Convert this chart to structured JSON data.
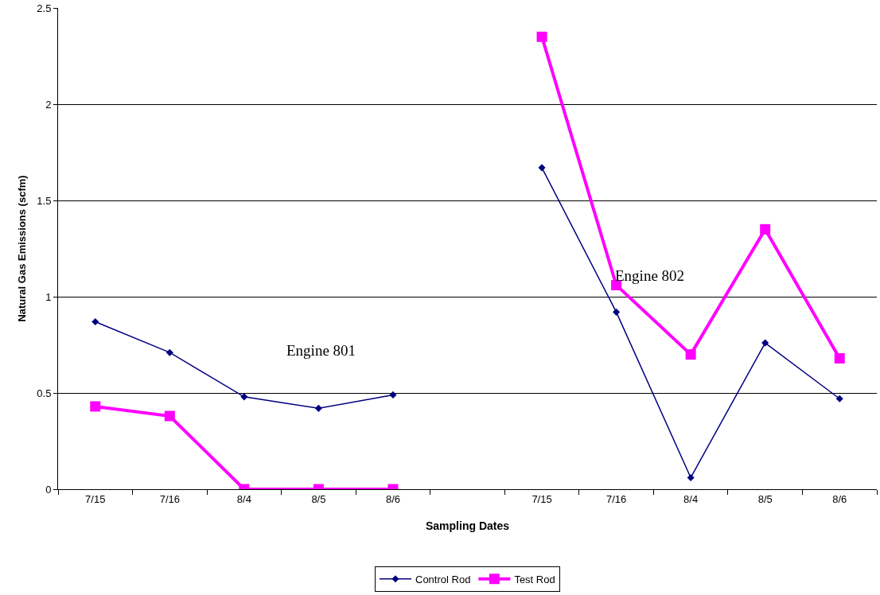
{
  "chart_data": {
    "type": "line",
    "xlabel": "Sampling Dates",
    "ylabel": "Natural Gas Emissions (scfm)",
    "categories": [
      "7/15",
      "7/16",
      "8/4",
      "8/5",
      "8/6",
      null,
      "7/15",
      "7/16",
      "8/4",
      "8/5",
      "8/6"
    ],
    "series": [
      {
        "name": "Control Rod",
        "color": "#000080",
        "marker": "diamond",
        "values": [
          0.87,
          0.71,
          0.48,
          0.42,
          0.49,
          null,
          1.67,
          0.92,
          0.06,
          0.76,
          0.47
        ]
      },
      {
        "name": "Test Rod",
        "color": "#ff00ff",
        "marker": "square",
        "values": [
          0.43,
          0.38,
          0,
          0,
          0,
          null,
          2.35,
          1.06,
          0.7,
          1.35,
          0.68
        ]
      }
    ],
    "ylim": [
      0,
      2.5
    ],
    "yticks": [
      0,
      0.5,
      1,
      1.5,
      2,
      2.5
    ],
    "grid": "y",
    "legend": "bottom",
    "annotations": [
      "Engine 801",
      "Engine 802"
    ]
  }
}
